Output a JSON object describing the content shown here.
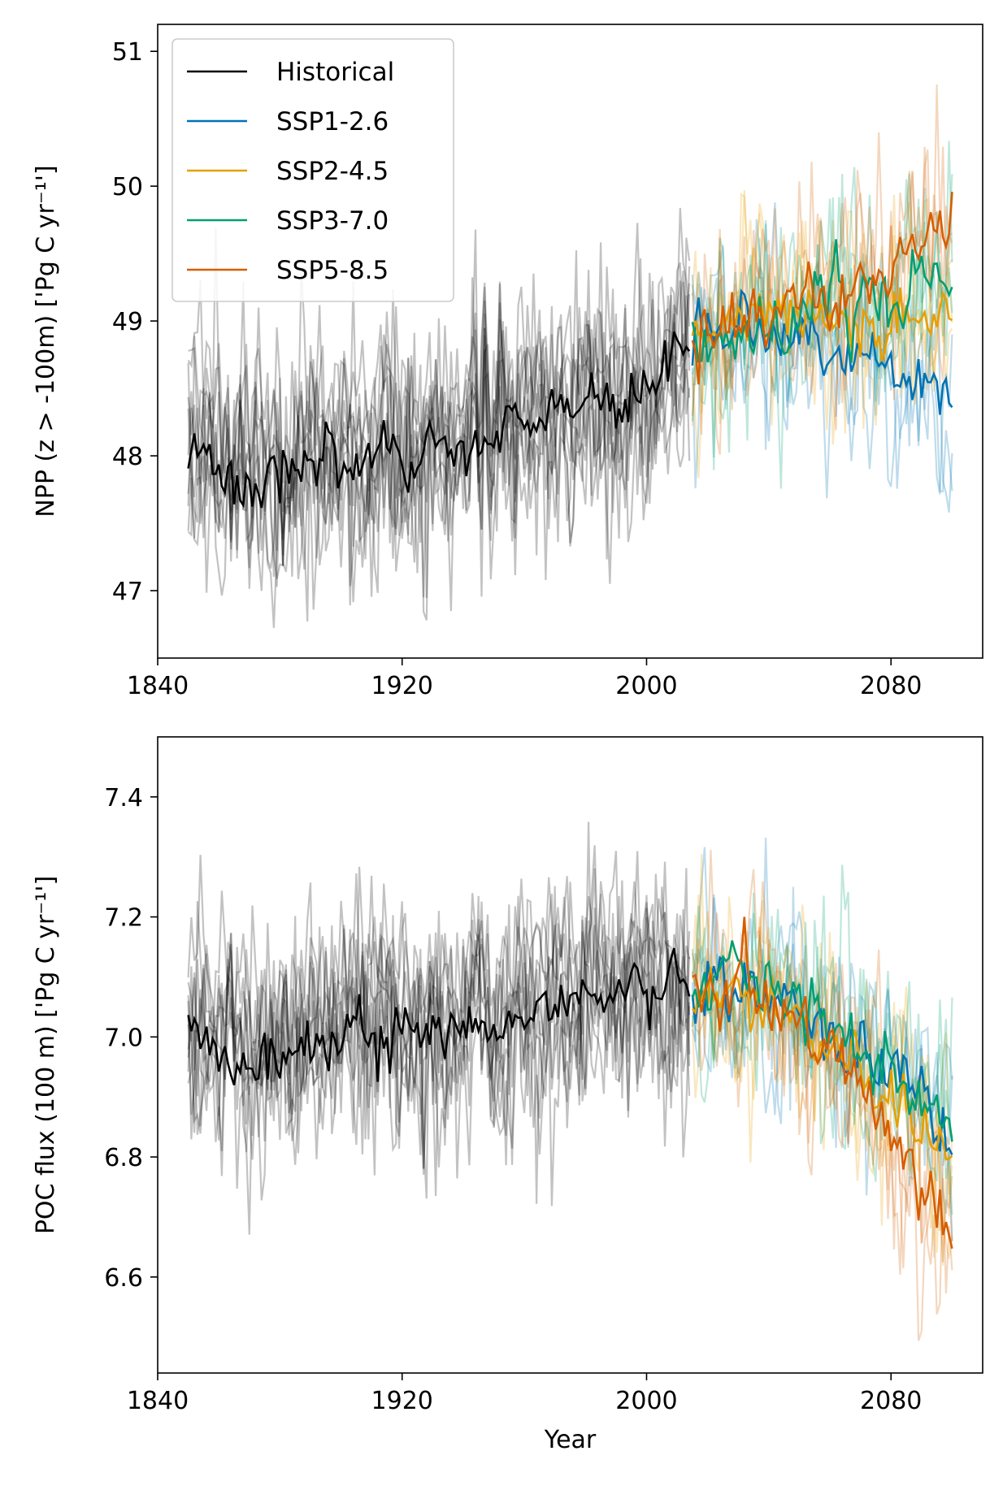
{
  "chart_data": [
    {
      "type": "line",
      "panel": "top",
      "title": "",
      "xlabel": "",
      "ylabel": "NPP (z > -100m) ['Pg C yr⁻¹']",
      "xlim": [
        1840,
        2110
      ],
      "ylim": [
        46.5,
        51.2
      ],
      "xticks": [
        1840,
        1920,
        2000,
        2080
      ],
      "yticks": [
        47,
        48,
        49,
        50,
        51
      ],
      "grid": false,
      "legend": {
        "placement": "top-left",
        "entries": [
          "Historical",
          "SSP1-2.6",
          "SSP2-4.5",
          "SSP3-7.0",
          "SSP5-8.5"
        ]
      },
      "series": [
        {
          "name": "Historical",
          "color": "#000000",
          "x": [
            1850,
            1870,
            1890,
            1910,
            1930,
            1950,
            1970,
            1990,
            2000,
            2014
          ],
          "y": [
            48.1,
            47.8,
            48.0,
            47.9,
            48.0,
            48.2,
            48.3,
            48.4,
            48.5,
            48.8
          ]
        },
        {
          "name": "SSP1-2.6",
          "color": "#0072B2",
          "x": [
            2015,
            2030,
            2045,
            2060,
            2075,
            2090,
            2100
          ],
          "y": [
            48.8,
            49.0,
            48.9,
            48.8,
            48.7,
            48.5,
            48.3
          ]
        },
        {
          "name": "SSP2-4.5",
          "color": "#E69F00",
          "x": [
            2015,
            2030,
            2045,
            2060,
            2075,
            2090,
            2100
          ],
          "y": [
            48.8,
            49.0,
            49.1,
            49.1,
            49.0,
            49.0,
            49.0
          ]
        },
        {
          "name": "SSP3-7.0",
          "color": "#009E73",
          "x": [
            2015,
            2030,
            2045,
            2060,
            2075,
            2090,
            2100
          ],
          "y": [
            48.8,
            48.9,
            49.0,
            49.2,
            49.2,
            49.3,
            49.3
          ]
        },
        {
          "name": "SSP5-8.5",
          "color": "#D55E00",
          "x": [
            2015,
            2030,
            2045,
            2060,
            2075,
            2090,
            2100
          ],
          "y": [
            48.8,
            49.0,
            49.1,
            49.2,
            49.3,
            49.6,
            49.7
          ]
        }
      ]
    },
    {
      "type": "line",
      "panel": "bottom",
      "title": "",
      "xlabel": "Year",
      "ylabel": "POC flux (100 m) ['Pg C yr⁻¹']",
      "xlim": [
        1840,
        2110
      ],
      "ylim": [
        6.44,
        7.5
      ],
      "xticks": [
        1840,
        1920,
        2000,
        2080
      ],
      "yticks": [
        6.6,
        6.8,
        7.0,
        7.2,
        7.4
      ],
      "grid": false,
      "series": [
        {
          "name": "Historical",
          "color": "#000000",
          "x": [
            1850,
            1870,
            1890,
            1910,
            1930,
            1950,
            1970,
            1990,
            2000,
            2014
          ],
          "y": [
            7.01,
            6.96,
            7.0,
            7.02,
            7.0,
            7.01,
            7.05,
            7.08,
            7.07,
            7.08
          ]
        },
        {
          "name": "SSP1-2.6",
          "color": "#0072B2",
          "x": [
            2015,
            2030,
            2045,
            2060,
            2075,
            2090,
            2100
          ],
          "y": [
            7.08,
            7.09,
            7.05,
            7.0,
            6.97,
            6.92,
            6.82
          ]
        },
        {
          "name": "SSP2-4.5",
          "color": "#E69F00",
          "x": [
            2015,
            2030,
            2045,
            2060,
            2075,
            2090,
            2100
          ],
          "y": [
            7.08,
            7.08,
            7.05,
            6.98,
            6.92,
            6.85,
            6.8
          ]
        },
        {
          "name": "SSP3-7.0",
          "color": "#009E73",
          "x": [
            2015,
            2030,
            2045,
            2060,
            2075,
            2090,
            2100
          ],
          "y": [
            7.08,
            7.1,
            7.07,
            7.02,
            6.98,
            6.9,
            6.85
          ]
        },
        {
          "name": "SSP5-8.5",
          "color": "#D55E00",
          "x": [
            2015,
            2030,
            2045,
            2060,
            2075,
            2090,
            2100
          ],
          "y": [
            7.08,
            7.09,
            7.05,
            6.98,
            6.88,
            6.75,
            6.65
          ]
        }
      ]
    }
  ]
}
